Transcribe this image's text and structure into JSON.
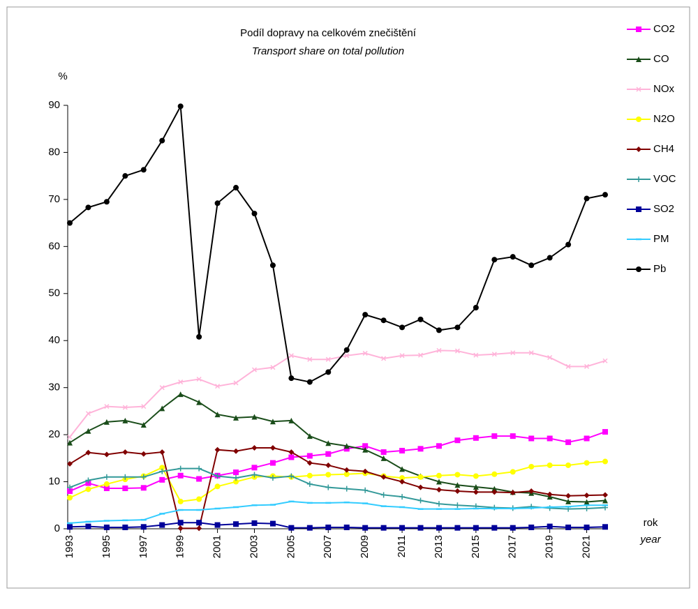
{
  "chart_data": {
    "type": "line",
    "title": "Podíl dopravy na celkovém znečištění",
    "subtitle": "Transport share on total pollution",
    "y_label": "%",
    "x_label": "rok",
    "x_label_en": "year",
    "x": [
      1993,
      1994,
      1995,
      1996,
      1997,
      1998,
      1999,
      2000,
      2001,
      2002,
      2003,
      2004,
      2005,
      2006,
      2007,
      2008,
      2009,
      2010,
      2011,
      2012,
      2013,
      2014,
      2015,
      2016,
      2017,
      2018,
      2019,
      2020,
      2021,
      2022
    ],
    "xlim": [
      1993,
      2022
    ],
    "xticks": [
      1993,
      1995,
      1997,
      1999,
      2001,
      2003,
      2005,
      2007,
      2009,
      2011,
      2013,
      2015,
      2017,
      2019,
      2021
    ],
    "ylim": [
      0,
      90
    ],
    "yticks": [
      0,
      10,
      20,
      30,
      40,
      50,
      60,
      70,
      80,
      90
    ],
    "legend": "right",
    "series": [
      {
        "name": "CO2",
        "color": "#ff00ff",
        "marker": "square",
        "values": [
          8,
          9.7,
          8.6,
          8.6,
          8.7,
          10.4,
          11.3,
          10.6,
          11.3,
          12,
          13,
          14,
          15.2,
          15.5,
          15.9,
          17,
          17.6,
          16.3,
          16.6,
          17,
          17.6,
          18.8,
          19.3,
          19.7,
          19.7,
          19.2,
          19.2,
          18.4,
          19.2,
          20.6
        ]
      },
      {
        "name": "CO",
        "color": "#1a4d1a",
        "marker": "triangle",
        "values": [
          18.3,
          20.8,
          22.7,
          23,
          22.1,
          25.6,
          28.6,
          26.9,
          24.3,
          23.6,
          23.8,
          22.8,
          23,
          19.7,
          18.2,
          17.6,
          16.8,
          15,
          12.7,
          11.2,
          10,
          9.3,
          8.9,
          8.5,
          7.8,
          7.6,
          6.8,
          5.8,
          5.7,
          6
        ]
      },
      {
        "name": "NOx",
        "color": "#ffb3d9",
        "marker": "cross",
        "values": [
          19.5,
          24.5,
          26,
          25.8,
          26,
          30,
          31.2,
          31.8,
          30.3,
          31,
          33.8,
          34.3,
          36.8,
          36,
          36,
          36.8,
          37.3,
          36.2,
          36.8,
          36.9,
          37.9,
          37.8,
          36.9,
          37.1,
          37.4,
          37.4,
          36.4,
          34.5,
          34.5,
          35.7
        ]
      },
      {
        "name": "N2O",
        "color": "#ffff00",
        "marker": "circle",
        "values": [
          6.6,
          8.4,
          9.5,
          10.5,
          11.2,
          13,
          5.8,
          6.3,
          9,
          10,
          11,
          11.2,
          11,
          11.3,
          11.5,
          11.6,
          11.8,
          11.2,
          10.8,
          11,
          11.3,
          11.5,
          11.2,
          11.6,
          12.1,
          13.2,
          13.5,
          13.5,
          14,
          14.3
        ]
      },
      {
        "name": "CH4",
        "color": "#800000",
        "marker": "diamond",
        "values": [
          13.8,
          16.2,
          15.8,
          16.3,
          15.9,
          16.3,
          0.1,
          0.1,
          16.8,
          16.5,
          17.2,
          17.2,
          16.3,
          14,
          13.5,
          12.5,
          12.2,
          11,
          10,
          8.8,
          8.3,
          8,
          7.8,
          7.8,
          7.7,
          8,
          7.3,
          7,
          7.1,
          7.2
        ]
      },
      {
        "name": "VOC",
        "color": "#339999",
        "marker": "plus",
        "values": [
          8.8,
          10.3,
          11,
          11,
          11,
          12.2,
          12.8,
          12.8,
          11.2,
          10.8,
          11.5,
          10.8,
          11.2,
          9.5,
          8.8,
          8.5,
          8.2,
          7.2,
          6.8,
          6,
          5.3,
          5,
          4.8,
          4.5,
          4.4,
          4.7,
          4.4,
          4.2,
          4.3,
          4.5
        ]
      },
      {
        "name": "SO2",
        "color": "#000099",
        "marker": "square",
        "values": [
          0.4,
          0.5,
          0.3,
          0.3,
          0.4,
          0.8,
          1.3,
          1.3,
          0.8,
          1,
          1.2,
          1.1,
          0.2,
          0.2,
          0.3,
          0.3,
          0.2,
          0.2,
          0.2,
          0.2,
          0.2,
          0.2,
          0.2,
          0.2,
          0.2,
          0.3,
          0.5,
          0.3,
          0.3,
          0.4
        ]
      },
      {
        "name": "PM",
        "color": "#33ccff",
        "marker": "dash",
        "values": [
          1.2,
          1.5,
          1.7,
          1.8,
          1.9,
          3.2,
          4,
          4,
          4.3,
          4.6,
          5,
          5.1,
          5.8,
          5.5,
          5.5,
          5.6,
          5.4,
          4.8,
          4.6,
          4.2,
          4.2,
          4.2,
          4.3,
          4.3,
          4.3,
          4.4,
          4.6,
          4.7,
          5,
          5
        ]
      },
      {
        "name": "Pb",
        "color": "#000000",
        "marker": "circle",
        "values": [
          65,
          68.3,
          69.5,
          75,
          76.3,
          82.5,
          89.8,
          40.8,
          69.2,
          72.5,
          67,
          56,
          32,
          31.2,
          33.3,
          38,
          45.5,
          44.3,
          42.8,
          44.5,
          42.2,
          42.8,
          47,
          57.2,
          57.8,
          56,
          57.6,
          60.4,
          70.2,
          71
        ]
      }
    ]
  }
}
